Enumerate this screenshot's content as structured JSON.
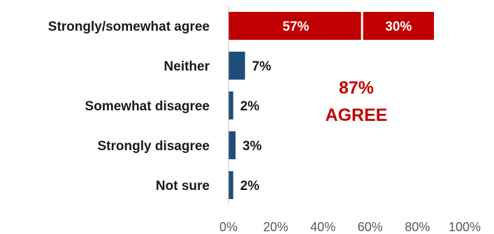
{
  "chart_data": {
    "type": "bar",
    "orientation": "horizontal",
    "stacked": true,
    "categories": [
      "Strongly/somewhat agree",
      "Neither",
      "Somewhat disagree",
      "Strongly disagree",
      "Not sure"
    ],
    "series": [
      {
        "values": [
          57,
          7,
          2,
          3,
          2
        ],
        "labels": [
          "57%",
          "7%",
          "2%",
          "3%",
          "2%"
        ]
      },
      {
        "values": [
          30,
          0,
          0,
          0,
          0
        ],
        "labels": [
          "30%",
          "",
          "",
          "",
          ""
        ]
      }
    ],
    "xlim": [
      0,
      100
    ],
    "xticks": [
      0,
      20,
      40,
      60,
      80,
      100
    ],
    "xtick_labels": [
      "0%",
      "20%",
      "40%",
      "60%",
      "80%",
      "100%"
    ],
    "grid": false,
    "colors": {
      "agree": "#c00000",
      "other": "#1f4e79",
      "agree_text": "#ffffff",
      "other_text": "#1a1a1a",
      "axis": "#bfbfbf"
    },
    "annotation": {
      "line1": "87%",
      "line2": "AGREE",
      "color": "#c00000"
    }
  }
}
